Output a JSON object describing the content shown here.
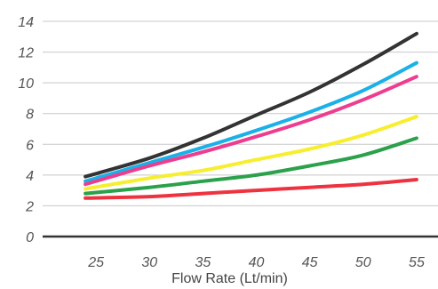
{
  "chart_data": {
    "type": "line",
    "title": "",
    "xlabel": "Flow Rate (Lt/min)",
    "ylabel": "",
    "xlim": [
      20,
      57
    ],
    "ylim": [
      0,
      14
    ],
    "x_ticks": [
      25,
      30,
      35,
      40,
      45,
      50,
      55
    ],
    "x_tick_labels": [
      "25",
      "30",
      "35",
      "40",
      "45",
      "50",
      "55"
    ],
    "y_ticks": [
      0,
      2,
      4,
      6,
      8,
      10,
      12,
      14
    ],
    "y_tick_labels": [
      "0",
      "2",
      "4",
      "6",
      "8",
      "10",
      "12",
      "14"
    ],
    "grid": "horizontal",
    "legend": "none",
    "series": [
      {
        "color": "#333333",
        "x": [
          24,
          30,
          35,
          40,
          45,
          50,
          55
        ],
        "y": [
          3.9,
          5.1,
          6.4,
          7.9,
          9.4,
          11.2,
          13.2
        ]
      },
      {
        "color": "#1ab0e8",
        "x": [
          24,
          30,
          35,
          40,
          45,
          50,
          55
        ],
        "y": [
          3.6,
          4.8,
          5.8,
          6.9,
          8.1,
          9.5,
          11.3
        ]
      },
      {
        "color": "#ee3d8f",
        "x": [
          24,
          30,
          35,
          40,
          45,
          50,
          55
        ],
        "y": [
          3.4,
          4.6,
          5.5,
          6.5,
          7.6,
          8.9,
          10.4
        ]
      },
      {
        "color": "#f6ee2e",
        "x": [
          24,
          30,
          35,
          40,
          45,
          50,
          55
        ],
        "y": [
          3.1,
          3.8,
          4.3,
          5.0,
          5.7,
          6.6,
          7.8
        ]
      },
      {
        "color": "#2aa14a",
        "x": [
          24,
          30,
          35,
          40,
          45,
          50,
          55
        ],
        "y": [
          2.8,
          3.2,
          3.6,
          4.0,
          4.6,
          5.3,
          6.4
        ]
      },
      {
        "color": "#ee3340",
        "x": [
          24,
          30,
          35,
          40,
          45,
          50,
          55
        ],
        "y": [
          2.5,
          2.6,
          2.8,
          3.0,
          3.2,
          3.4,
          3.7
        ]
      }
    ]
  }
}
